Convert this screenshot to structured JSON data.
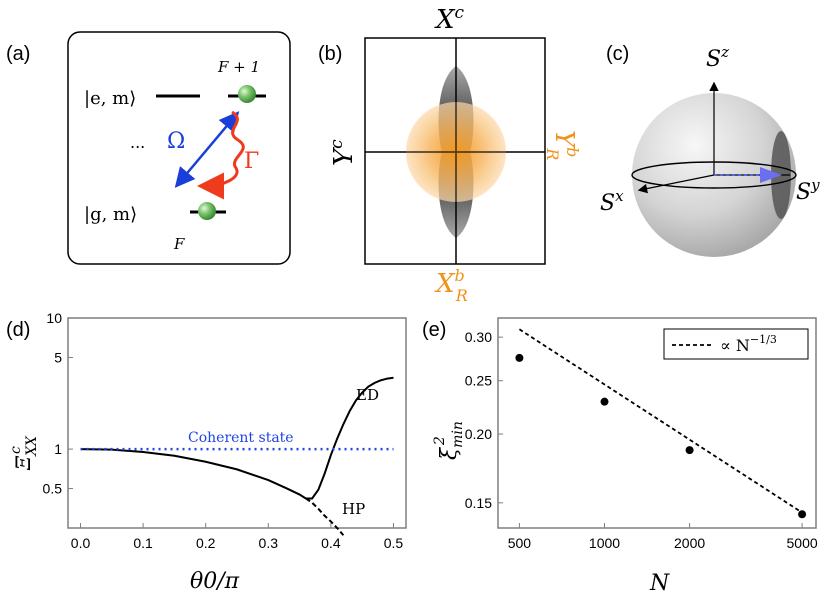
{
  "colors": {
    "blue": "#1a3fd8",
    "red": "#ee3b1b",
    "orange": "#f0931a",
    "dotted_blue": "#2143e6",
    "green": "#5fb85a",
    "gray_axis": "#7f7f7f"
  },
  "panel_a": {
    "label": "(a)",
    "excited": "|e, m⟩",
    "ground": "|g, m⟩",
    "upper_level": "F + 1",
    "lower_level": "F",
    "ellipsis": "...",
    "omega": "Ω",
    "gamma": "Γ"
  },
  "panel_b": {
    "label": "(b)",
    "top": "X",
    "top_sup": "c",
    "left": "Y",
    "left_sup": "c",
    "bottom": "X",
    "bottom_sup": "b",
    "bottom_sub": "R",
    "right": "Y",
    "right_sup": "b",
    "right_sub": "R"
  },
  "panel_c": {
    "label": "(c)",
    "sz": "S",
    "sz_sup": "z",
    "sx": "S",
    "sx_sup": "x",
    "sy": "S",
    "sy_sup": "y"
  },
  "panel_d": {
    "label": "(d)",
    "ylabel_main": "Ξ",
    "ylabel_sub": "XX",
    "ylabel_sup": "c",
    "xlabel": "θ0/π",
    "coherent_label": "Coherent state",
    "ed_label": "ED",
    "hp_label": "HP"
  },
  "panel_e": {
    "label": "(e)",
    "ylabel": "ξ",
    "ylabel_sub": "min",
    "ylabel_sup": "2",
    "xlabel": "N",
    "legend": "∝ N",
    "legend_exp": "−1/3"
  },
  "chart_data": [
    {
      "type": "line",
      "panel": "d",
      "xlabel": "θ0/π",
      "ylabel": "Ξ^c_XX",
      "yscale": "log",
      "xlim": [
        -0.02,
        0.52
      ],
      "ylim": [
        0.25,
        10
      ],
      "xticks": [
        0.0,
        0.1,
        0.2,
        0.3,
        0.4,
        0.5
      ],
      "xtick_labels": [
        "0.0",
        "0.1",
        "0.2",
        "0.3",
        "0.4",
        "0.5"
      ],
      "yticks": [
        0.5,
        1,
        5,
        10
      ],
      "ytick_labels": [
        "0.5",
        "1",
        "5",
        "10"
      ],
      "series": [
        {
          "name": "ED",
          "style": "solid",
          "x": [
            0.0,
            0.05,
            0.1,
            0.15,
            0.2,
            0.25,
            0.3,
            0.33,
            0.35,
            0.36,
            0.37,
            0.38,
            0.39,
            0.4,
            0.41,
            0.42,
            0.43,
            0.44,
            0.45,
            0.46,
            0.47,
            0.48,
            0.49,
            0.5
          ],
          "y": [
            1.0,
            0.99,
            0.95,
            0.89,
            0.8,
            0.7,
            0.58,
            0.5,
            0.45,
            0.42,
            0.42,
            0.49,
            0.65,
            0.9,
            1.2,
            1.55,
            1.95,
            2.35,
            2.7,
            3.0,
            3.2,
            3.35,
            3.45,
            3.5
          ]
        },
        {
          "name": "HP",
          "style": "dashed",
          "x": [
            0.36,
            0.37,
            0.38,
            0.39,
            0.4,
            0.41,
            0.42
          ],
          "y": [
            0.42,
            0.39,
            0.35,
            0.31,
            0.28,
            0.25,
            0.22
          ]
        },
        {
          "name": "Coherent state",
          "style": "dotted",
          "x": [
            0.0,
            0.5
          ],
          "y": [
            1.0,
            1.0
          ]
        }
      ]
    },
    {
      "type": "scatter",
      "panel": "e",
      "xlabel": "N",
      "ylabel": "ξ²_min",
      "xscale": "log",
      "yscale": "log",
      "xlim": [
        420,
        5600
      ],
      "ylim": [
        0.135,
        0.325
      ],
      "xticks": [
        500,
        1000,
        2000,
        5000
      ],
      "xtick_labels": [
        "500",
        "1000",
        "2000",
        "5000"
      ],
      "yticks": [
        0.15,
        0.2,
        0.25,
        0.3
      ],
      "ytick_labels": [
        "0.15",
        "0.20",
        "0.25",
        "0.30"
      ],
      "points": {
        "x": [
          500,
          1000,
          2000,
          5000
        ],
        "y": [
          0.275,
          0.229,
          0.187,
          0.143
        ]
      },
      "fit": {
        "name": "∝ N^−1/3",
        "style": "dashed",
        "x": [
          500,
          5000
        ],
        "y": [
          0.31,
          0.144
        ]
      }
    }
  ]
}
